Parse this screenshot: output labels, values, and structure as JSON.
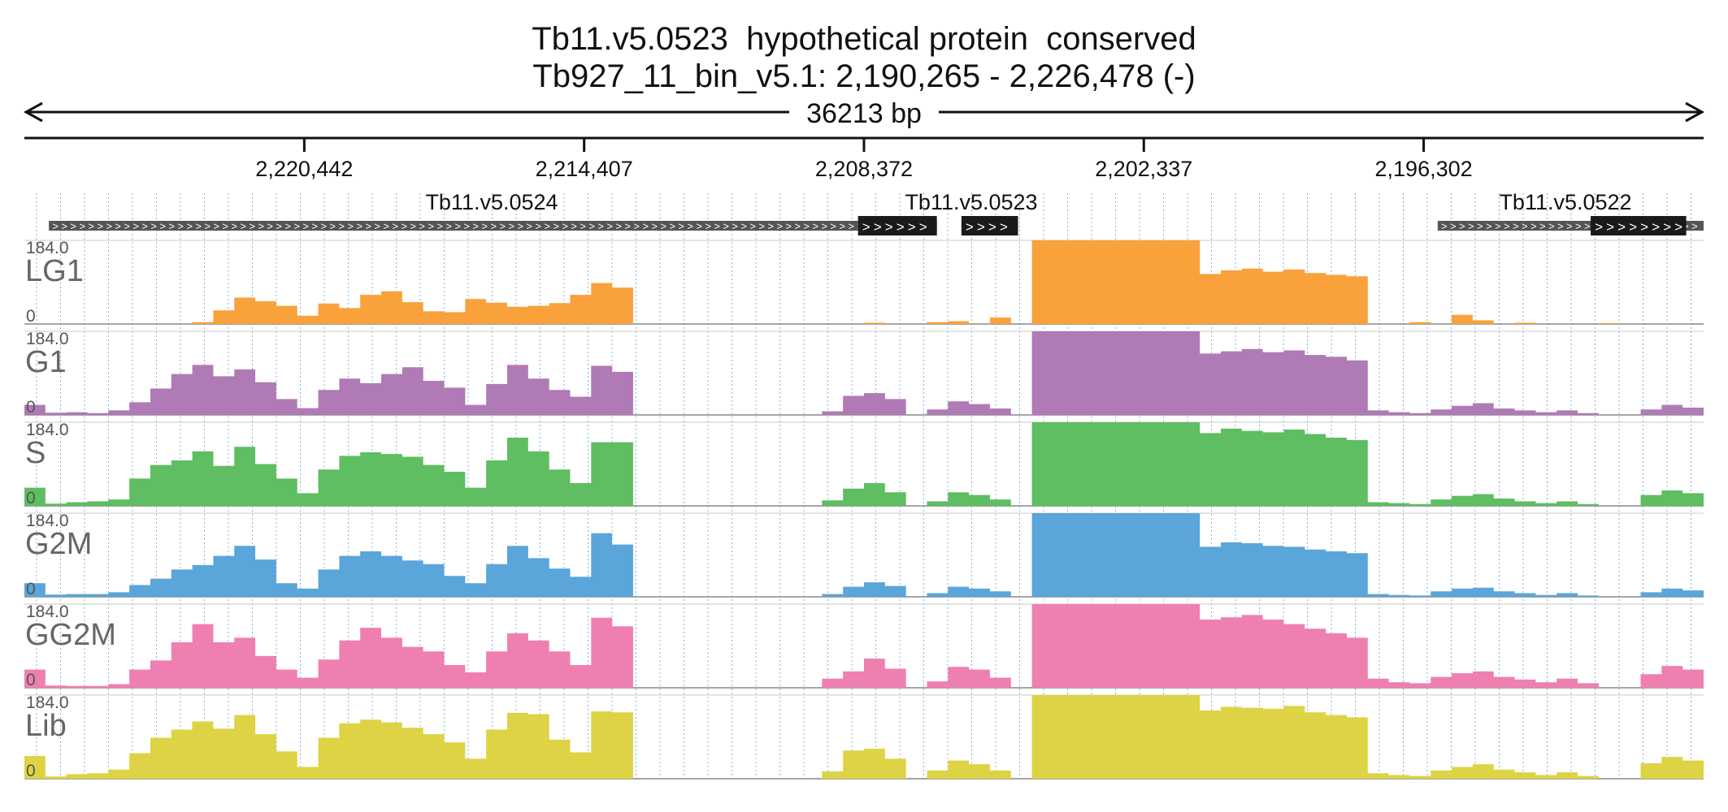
{
  "header": {
    "title": "Tb11.v5.0523  hypothetical protein  conserved",
    "location": "Tb927_11_bin_v5.1: 2,190,265 - 2,226,478 (-)",
    "span_label": "36213 bp"
  },
  "chart_data": {
    "type": "area",
    "title": "Tb11.v5.0523  hypothetical protein  conserved",
    "subtitle": "Tb927_11_bin_v5.1: 2,190,265 - 2,226,478 (-)",
    "chromosome": "Tb927_11_bin_v5.1",
    "region_start": 2190265,
    "region_end": 2226478,
    "strand": "-",
    "span_bp": 36213,
    "span_label": "36213 bp",
    "x_reversed": true,
    "x_ticks": [
      {
        "pos": 2220442,
        "label": "2,220,442"
      },
      {
        "pos": 2214407,
        "label": "2,214,407"
      },
      {
        "pos": 2208372,
        "label": "2,208,372"
      },
      {
        "pos": 2202337,
        "label": "2,202,337"
      },
      {
        "pos": 2196302,
        "label": "2,196,302"
      }
    ],
    "genes": [
      {
        "name": "Tb11.v5.0524",
        "start": 2206800,
        "end": 2225950,
        "cds": [
          {
            "start": 2206800,
            "end": 2208500
          }
        ]
      },
      {
        "name": "Tb11.v5.0523",
        "start": 2205050,
        "end": 2206270,
        "cds": [
          {
            "start": 2205050,
            "end": 2206270
          }
        ]
      },
      {
        "name": "Tb11.v5.0522",
        "start": 2190265,
        "end": 2196000,
        "cds": [
          {
            "start": 2190640,
            "end": 2192700
          }
        ]
      }
    ],
    "y_range": [
      0,
      184.0
    ],
    "y_max_label": "184.0",
    "y_min_label": "0",
    "bins": 80,
    "bin_order": "left-to-right on screen (descending genomic coordinate)",
    "series": [
      {
        "name": "LG1",
        "color": "#f9a13a",
        "values": [
          0,
          0,
          0,
          0,
          0,
          0,
          0,
          0,
          4,
          30,
          58,
          50,
          40,
          18,
          45,
          35,
          64,
          72,
          48,
          28,
          26,
          55,
          47,
          38,
          40,
          46,
          64,
          90,
          80,
          0,
          0,
          0,
          0,
          0,
          0,
          0,
          0,
          0,
          0,
          0,
          3,
          0,
          0,
          4,
          6,
          0,
          14,
          0,
          184,
          184,
          184,
          184,
          184,
          184,
          184,
          184,
          110,
          118,
          122,
          115,
          120,
          112,
          108,
          105,
          0,
          0,
          4,
          0,
          20,
          8,
          0,
          3,
          0,
          0,
          0,
          2,
          0,
          0,
          0,
          0
        ]
      },
      {
        "name": "G1",
        "color": "#b07ab6",
        "values": [
          22,
          5,
          6,
          4,
          10,
          28,
          58,
          90,
          110,
          85,
          100,
          72,
          35,
          15,
          55,
          80,
          70,
          90,
          105,
          75,
          60,
          22,
          68,
          110,
          80,
          55,
          40,
          108,
          95,
          0,
          0,
          0,
          0,
          0,
          0,
          0,
          0,
          0,
          8,
          42,
          48,
          35,
          0,
          12,
          30,
          24,
          14,
          0,
          184,
          184,
          184,
          184,
          184,
          184,
          184,
          184,
          135,
          140,
          145,
          138,
          142,
          132,
          128,
          120,
          10,
          6,
          4,
          12,
          20,
          26,
          14,
          10,
          6,
          10,
          4,
          0,
          0,
          12,
          22,
          16
        ]
      },
      {
        "name": "S",
        "color": "#5fbd62",
        "values": [
          40,
          5,
          8,
          10,
          14,
          60,
          90,
          100,
          120,
          88,
          130,
          92,
          60,
          28,
          80,
          110,
          118,
          114,
          108,
          90,
          75,
          40,
          100,
          150,
          120,
          80,
          50,
          140,
          140,
          0,
          0,
          0,
          0,
          0,
          0,
          0,
          0,
          0,
          12,
          38,
          50,
          30,
          0,
          10,
          30,
          24,
          14,
          0,
          184,
          184,
          184,
          184,
          184,
          184,
          184,
          184,
          160,
          170,
          165,
          162,
          168,
          158,
          150,
          145,
          8,
          6,
          4,
          14,
          22,
          26,
          16,
          10,
          6,
          10,
          4,
          0,
          0,
          24,
          34,
          28
        ]
      },
      {
        "name": "G2M",
        "color": "#5aa5da",
        "values": [
          30,
          5,
          6,
          6,
          10,
          26,
          40,
          60,
          70,
          90,
          112,
          82,
          30,
          18,
          60,
          90,
          100,
          90,
          80,
          72,
          46,
          30,
          72,
          112,
          85,
          62,
          44,
          140,
          115,
          0,
          0,
          0,
          0,
          0,
          0,
          0,
          0,
          0,
          6,
          22,
          32,
          24,
          0,
          8,
          22,
          18,
          12,
          0,
          184,
          184,
          184,
          184,
          184,
          184,
          184,
          184,
          110,
          120,
          118,
          112,
          110,
          104,
          100,
          96,
          6,
          4,
          3,
          12,
          18,
          20,
          12,
          8,
          4,
          8,
          3,
          0,
          0,
          10,
          18,
          14
        ]
      },
      {
        "name": "GG2M",
        "color": "#ef7fb1",
        "values": [
          40,
          5,
          4,
          4,
          8,
          40,
          60,
          100,
          140,
          100,
          110,
          70,
          40,
          22,
          62,
          104,
          132,
          110,
          90,
          80,
          50,
          34,
          80,
          120,
          104,
          80,
          50,
          154,
          135,
          0,
          0,
          0,
          0,
          0,
          0,
          0,
          0,
          0,
          20,
          36,
          64,
          42,
          0,
          14,
          46,
          40,
          22,
          0,
          184,
          184,
          184,
          184,
          184,
          184,
          184,
          184,
          150,
          155,
          160,
          150,
          140,
          130,
          120,
          110,
          20,
          12,
          10,
          24,
          32,
          36,
          24,
          18,
          12,
          20,
          10,
          0,
          0,
          30,
          48,
          40
        ]
      },
      {
        "name": "Lib",
        "color": "#ddd344",
        "values": [
          50,
          5,
          10,
          12,
          20,
          56,
          90,
          108,
          126,
          110,
          140,
          98,
          60,
          26,
          90,
          122,
          130,
          124,
          112,
          98,
          80,
          44,
          108,
          145,
          142,
          86,
          58,
          148,
          146,
          0,
          0,
          0,
          0,
          0,
          0,
          0,
          0,
          0,
          16,
          62,
          66,
          44,
          0,
          18,
          40,
          32,
          18,
          0,
          184,
          184,
          184,
          184,
          184,
          184,
          184,
          184,
          150,
          158,
          156,
          154,
          160,
          146,
          140,
          135,
          12,
          8,
          6,
          18,
          26,
          32,
          20,
          14,
          8,
          14,
          6,
          0,
          0,
          34,
          48,
          40
        ]
      }
    ]
  }
}
